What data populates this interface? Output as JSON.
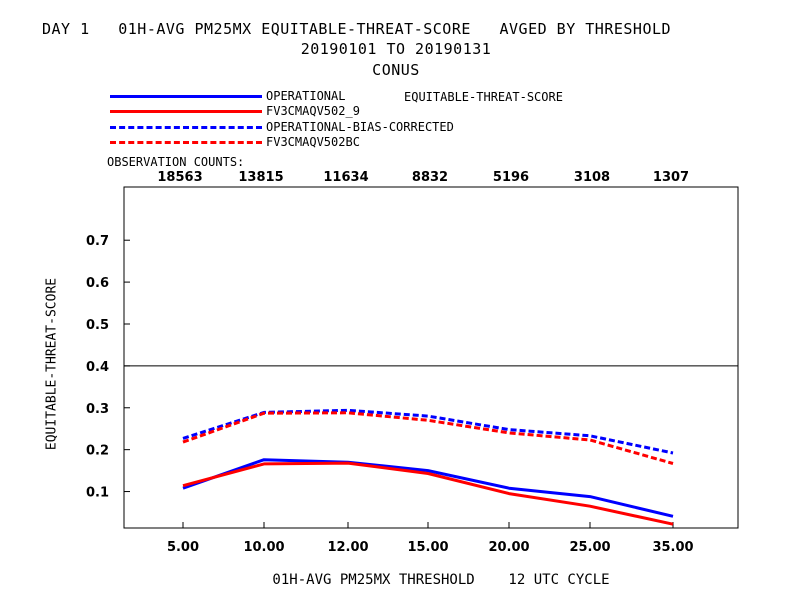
{
  "header": {
    "title": "DAY 1   01H-AVG PM25MX EQUITABLE-THREAT-SCORE   AVGED BY THRESHOLD",
    "dates": "20190101 TO 20190131",
    "region": "CONUS"
  },
  "legend": {
    "metric": "EQUITABLE-THREAT-SCORE"
  },
  "observation_counts": {
    "title": "OBSERVATION COUNTS:",
    "values": [
      "18563",
      "13815",
      "11634",
      "8832",
      "5196",
      "3108",
      "1307"
    ]
  },
  "chart_data": {
    "type": "line",
    "categories": [
      "5.00",
      "10.00",
      "12.00",
      "15.00",
      "20.00",
      "25.00",
      "35.00"
    ],
    "series": [
      {
        "name": "OPERATIONAL",
        "color": "#0000ff",
        "style": "solid",
        "values": [
          0.108,
          0.176,
          0.17,
          0.15,
          0.108,
          0.088,
          0.041
        ]
      },
      {
        "name": "FV3CMAQV502_9",
        "color": "#ff0000",
        "style": "solid",
        "values": [
          0.114,
          0.166,
          0.168,
          0.143,
          0.095,
          0.065,
          0.022
        ]
      },
      {
        "name": "OPERATIONAL-BIAS-CORRECTED",
        "color": "#0000ff",
        "style": "dashed",
        "values": [
          0.227,
          0.289,
          0.294,
          0.28,
          0.248,
          0.233,
          0.192
        ]
      },
      {
        "name": "FV3CMAQV502BC",
        "color": "#ff0000",
        "style": "dashed",
        "values": [
          0.218,
          0.287,
          0.288,
          0.27,
          0.24,
          0.223,
          0.167
        ]
      }
    ],
    "yticks": [
      "0.1",
      "0.2",
      "0.3",
      "0.4",
      "0.5",
      "0.6",
      "0.7"
    ],
    "ylim": [
      0.013,
      0.827
    ],
    "reference_line": 0.4,
    "xlabel": "01H-AVG PM25MX THRESHOLD    12 UTC CYCLE",
    "ylabel": "EQUITABLE-THREAT-SCORE"
  }
}
